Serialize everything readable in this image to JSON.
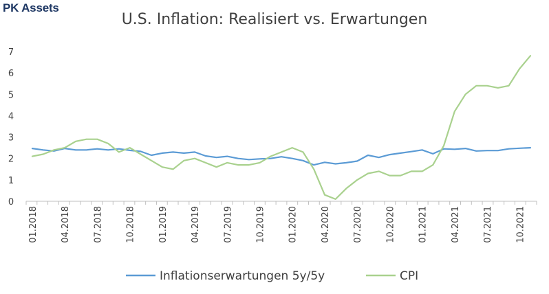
{
  "brand": "PK Assets",
  "chart_data": {
    "type": "line",
    "title": "U.S. Inflation: Realisiert vs. Erwartungen",
    "xlabel": "",
    "ylabel": "",
    "ylim": [
      0,
      7
    ],
    "yticks": [
      0,
      1,
      2,
      3,
      4,
      5,
      6,
      7
    ],
    "grid": false,
    "legend_position": "bottom",
    "x": [
      "01.2018",
      "02.2018",
      "03.2018",
      "04.2018",
      "05.2018",
      "06.2018",
      "07.2018",
      "08.2018",
      "09.2018",
      "10.2018",
      "11.2018",
      "12.2018",
      "01.2019",
      "02.2019",
      "03.2019",
      "04.2019",
      "05.2019",
      "06.2019",
      "07.2019",
      "08.2019",
      "09.2019",
      "10.2019",
      "11.2019",
      "12.2019",
      "01.2020",
      "02.2020",
      "03.2020",
      "04.2020",
      "05.2020",
      "06.2020",
      "07.2020",
      "08.2020",
      "09.2020",
      "10.2020",
      "11.2020",
      "12.2020",
      "01.2021",
      "02.2021",
      "03.2021",
      "04.2021",
      "05.2021",
      "06.2021",
      "07.2021",
      "08.2021",
      "09.2021",
      "10.2021",
      "11.2021"
    ],
    "xtick_labels": [
      "01.2018",
      "04.2018",
      "07.2018",
      "10.2018",
      "01.2019",
      "04.2019",
      "07.2019",
      "10.2019",
      "01.2020",
      "04.2020",
      "07.2020",
      "10.2020",
      "01.2021",
      "04.2021",
      "07.2021",
      "10.2021"
    ],
    "series": [
      {
        "name": "Inflationserwartungen 5y/5y",
        "color": "#5b9bd5",
        "values": [
          2.47,
          2.4,
          2.35,
          2.47,
          2.4,
          2.4,
          2.45,
          2.4,
          2.45,
          2.38,
          2.33,
          2.15,
          2.25,
          2.3,
          2.25,
          2.3,
          2.12,
          2.05,
          2.1,
          2.0,
          1.95,
          1.98,
          2.0,
          2.08,
          2.0,
          1.9,
          1.7,
          1.82,
          1.75,
          1.8,
          1.88,
          2.15,
          2.05,
          2.18,
          2.25,
          2.32,
          2.4,
          2.22,
          2.45,
          2.43,
          2.47,
          2.35,
          2.37,
          2.37,
          2.45,
          2.48,
          2.5
        ]
      },
      {
        "name": "CPI",
        "color": "#a9d18e",
        "values": [
          2.1,
          2.2,
          2.4,
          2.5,
          2.8,
          2.9,
          2.9,
          2.7,
          2.3,
          2.5,
          2.2,
          1.9,
          1.6,
          1.5,
          1.9,
          2.0,
          1.8,
          1.6,
          1.8,
          1.7,
          1.7,
          1.8,
          2.1,
          2.3,
          2.5,
          2.3,
          1.5,
          0.3,
          0.1,
          0.6,
          1.0,
          1.3,
          1.4,
          1.2,
          1.2,
          1.4,
          1.4,
          1.7,
          2.6,
          4.2,
          5.0,
          5.4,
          5.4,
          5.3,
          5.4,
          6.2,
          6.8
        ]
      }
    ]
  }
}
